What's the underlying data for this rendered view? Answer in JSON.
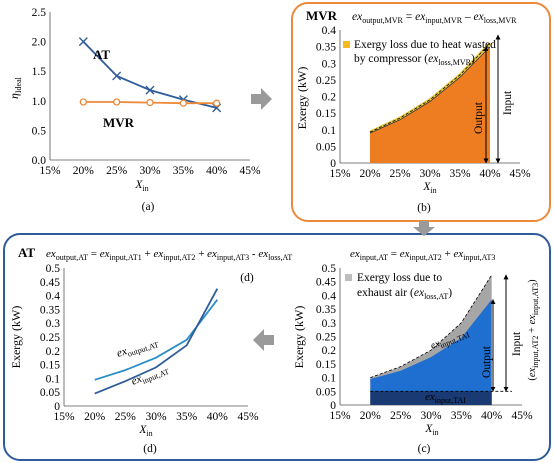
{
  "chart_data": [
    {
      "panel": "a",
      "caption": "(a)",
      "type": "line",
      "xlabel_main": "X",
      "xlabel_sub": "in",
      "ylabel_main": "η",
      "ylabel_sub": "Ideal",
      "x_ticks": [
        "15%",
        "20%",
        "25%",
        "30%",
        "35%",
        "40%",
        "45%"
      ],
      "y_ticks": [
        "0.0",
        "0.5",
        "1.0",
        "1.5",
        "2.0",
        "2.5"
      ],
      "xlim": [
        15,
        45
      ],
      "ylim": [
        0,
        2.5
      ],
      "series": [
        {
          "name": "AT",
          "color": "#2e5c99",
          "marker": "x",
          "x": [
            20,
            25,
            30,
            35,
            40
          ],
          "y": [
            2.0,
            1.42,
            1.18,
            1.02,
            0.88
          ]
        },
        {
          "name": "MVR",
          "color": "#ed8a3a",
          "marker": "circle",
          "x": [
            20,
            25,
            30,
            35,
            40
          ],
          "y": [
            0.98,
            0.98,
            0.97,
            0.96,
            0.96
          ]
        }
      ]
    },
    {
      "panel": "b",
      "caption": "(b)",
      "type": "area",
      "tag": "MVR",
      "equation": {
        "lhs": "ex",
        "lhs_sub": "output,MVR",
        "eq": " = ",
        "t1": "ex",
        "t1_sub": "input,MVR",
        "minus": " – ",
        "t2": "ex",
        "t2_sub": "loss,MVR"
      },
      "legend_line1": "Exergy loss due to heat wasted",
      "legend_line2": "by compressor (",
      "legend_ex": "ex",
      "legend_sub": "loss,MVR",
      "legend_close": ")",
      "label_output": "Output",
      "label_input": "Input",
      "xlabel_main": "X",
      "xlabel_sub": "in",
      "ylabel": "Exergy (kW)",
      "x_ticks": [
        "15%",
        "20%",
        "25%",
        "30%",
        "35%",
        "40%",
        "45%"
      ],
      "y_ticks": [
        "0",
        "0.05",
        "0.1",
        "0.15",
        "0.2",
        "0.25",
        "0.3",
        "0.35",
        "0.4"
      ],
      "xlim": [
        15,
        45
      ],
      "ylim": [
        0,
        0.4
      ],
      "series": [
        {
          "role": "input",
          "color": "#e8c63a",
          "x": [
            20,
            25,
            30,
            35,
            40
          ],
          "y": [
            0.093,
            0.135,
            0.19,
            0.265,
            0.36
          ]
        },
        {
          "role": "output",
          "color": "#ee7d22",
          "x": [
            20,
            25,
            30,
            35,
            40
          ],
          "y": [
            0.09,
            0.13,
            0.185,
            0.258,
            0.35
          ]
        }
      ]
    },
    {
      "panel": "d",
      "caption": "(d)",
      "type": "line",
      "tag": "AT",
      "equation": {
        "lhs": "ex",
        "lhs_sub": "output,AT",
        "eq": " = ",
        "t1": "ex",
        "t1_sub": "input,AT1",
        "p1": " + ",
        "t2": "ex",
        "t2_sub": "input,AT2",
        "p2": " + ",
        "t3": "ex",
        "t3_sub": "input,AT3",
        "minus": " - ",
        "t4": "ex",
        "t4_sub": "loss,AT"
      },
      "corner_label": "(d)",
      "xlabel_main": "X",
      "xlabel_sub": "in",
      "ylabel": "Exergy (kW)",
      "x_ticks": [
        "15%",
        "20%",
        "25%",
        "30%",
        "35%",
        "40%",
        "45%"
      ],
      "y_ticks": [
        "0",
        "0.05",
        "0.1",
        "0.15",
        "0.2",
        "0.25",
        "0.3",
        "0.35",
        "0.4",
        "0.45",
        "0.5"
      ],
      "xlim": [
        15,
        45
      ],
      "ylim": [
        0,
        0.5
      ],
      "series": [
        {
          "name": "ex",
          "name_sub": "output,AT",
          "color": "#2a8fc4",
          "x": [
            20,
            25,
            30,
            35,
            40
          ],
          "y": [
            0.095,
            0.13,
            0.175,
            0.24,
            0.385
          ]
        },
        {
          "name": "ex",
          "name_sub": "input,AT",
          "color": "#2e5c99",
          "x": [
            20,
            25,
            30,
            35,
            40
          ],
          "y": [
            0.045,
            0.09,
            0.14,
            0.22,
            0.425
          ]
        }
      ]
    },
    {
      "panel": "c",
      "caption": "(c)",
      "type": "area",
      "equation": {
        "lhs": "ex",
        "lhs_sub": "input,AT",
        "eq": " = ",
        "t1": "ex",
        "t1_sub": "input,AT2",
        "p1": " + ",
        "t2": "ex",
        "t2_sub": "input,AT3"
      },
      "legend_line1": "Exergy loss due to",
      "legend_line2": "exhaust air (",
      "legend_ex": "ex",
      "legend_sub": "loss,AT",
      "legend_close": ")",
      "label_output": "Output",
      "label_input": "Input",
      "label_input_paren": "(",
      "label_input_ex1": "ex",
      "label_input_sub1": "input,AT2",
      "label_input_plus": " + ",
      "label_input_ex2": "ex",
      "label_input_sub2": "input,AT3",
      "label_input_close": ")",
      "label_tai_ex": "ex",
      "label_tai_sub": "input,TAI",
      "label_curve_ex": "ex",
      "label_curve_sub": "input,TAI",
      "xlabel_main": "X",
      "xlabel_sub": "in",
      "ylabel": "Exergy (kW)",
      "x_ticks": [
        "15%",
        "20%",
        "25%",
        "30%",
        "35%",
        "40%",
        "45%"
      ],
      "y_ticks": [
        "0",
        "0.05",
        "0.1",
        "0.15",
        "0.2",
        "0.25",
        "0.3",
        "0.35",
        "0.4",
        "0.45",
        "0.5"
      ],
      "xlim": [
        15,
        45
      ],
      "ylim": [
        0,
        0.5
      ],
      "series": [
        {
          "role": "input",
          "color": "#a6a6a6",
          "x": [
            20,
            25,
            30,
            35,
            40
          ],
          "y": [
            0.1,
            0.14,
            0.2,
            0.3,
            0.475
          ]
        },
        {
          "role": "output",
          "color": "#1f6fd1",
          "x": [
            20,
            25,
            30,
            35,
            40
          ],
          "y": [
            0.095,
            0.125,
            0.175,
            0.245,
            0.385
          ]
        },
        {
          "role": "base",
          "color": "#1a3a73",
          "x": [
            20,
            40
          ],
          "y": [
            0.05,
            0.05
          ]
        }
      ]
    }
  ]
}
